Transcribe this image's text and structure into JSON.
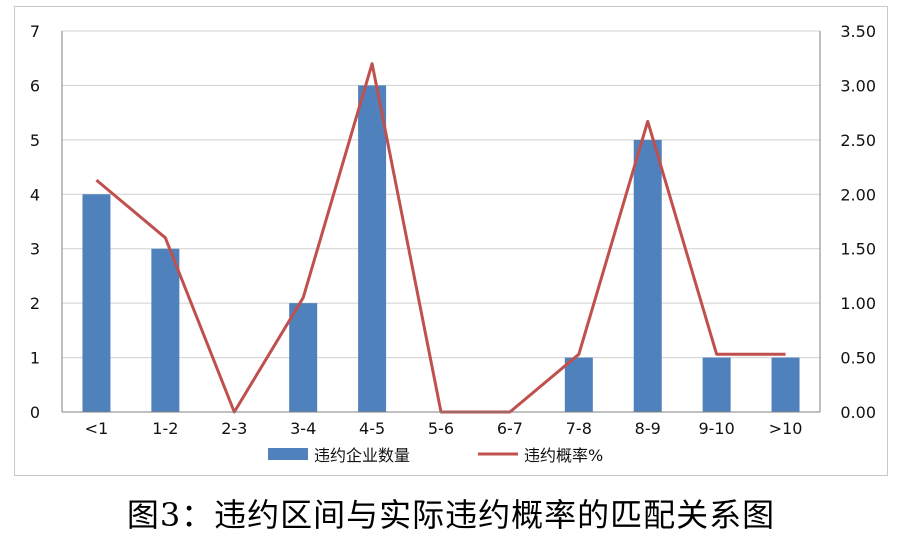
{
  "caption": "图3：违约区间与实际违约概率的匹配关系图",
  "colors": {
    "bar": "#4F81BD",
    "line": "#C0504D",
    "grid": "#d0d0d0",
    "axis": "#808080"
  },
  "chart_data": {
    "type": "bar",
    "categories": [
      "<1",
      "1-2",
      "2-3",
      "3-4",
      "4-5",
      "5-6",
      "6-7",
      "7-8",
      "8-9",
      "9-10",
      ">10"
    ],
    "y_left": {
      "ylim": [
        0,
        7
      ],
      "ticks": [
        "0",
        "1",
        "2",
        "3",
        "4",
        "5",
        "6",
        "7"
      ]
    },
    "y_right": {
      "ylim": [
        0,
        3.5
      ],
      "ticks": [
        "0.00",
        "0.50",
        "1.00",
        "1.50",
        "2.00",
        "2.50",
        "3.00",
        "3.50"
      ]
    },
    "series": [
      {
        "name": "违约企业数量",
        "type": "bar",
        "axis": "left",
        "values": [
          4,
          3,
          0,
          2,
          6,
          0,
          0,
          1,
          5,
          1,
          1
        ]
      },
      {
        "name": "违约概率%",
        "type": "line",
        "axis": "right",
        "values": [
          2.13,
          1.6,
          0.0,
          1.05,
          3.2,
          0.0,
          0.0,
          0.53,
          2.67,
          0.53,
          0.53
        ]
      }
    ],
    "grid": "horizontal",
    "legend": "bottom"
  }
}
